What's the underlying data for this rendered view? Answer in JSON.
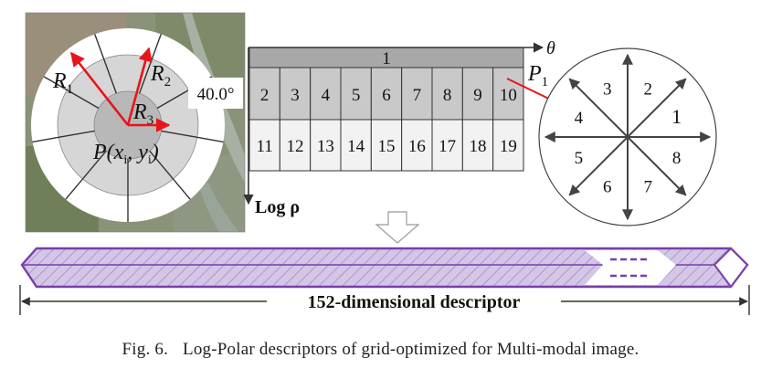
{
  "figure": {
    "caption_number": "Fig. 6.",
    "caption_text": "Log-Polar descriptors of grid-optimized for Multi-modal image."
  },
  "circle_panel": {
    "radius_labels": [
      "R",
      "1",
      "R",
      "2",
      "R",
      "3"
    ],
    "angle_label": "40.0°",
    "point_label": {
      "p": "P(",
      "x": "x",
      "xi": "i",
      "comma": ", ",
      "y": "y",
      "yi": "i",
      "close": ")"
    },
    "colors": {
      "red_arrow": "#e8141a",
      "outer_ring": "#ffffff",
      "middle_ring": "#d6d6d6",
      "inner_disc": "#b8b8b8"
    }
  },
  "grid_panel": {
    "top_cell": "1",
    "middle_row": [
      "2",
      "3",
      "4",
      "5",
      "6",
      "7",
      "8",
      "9",
      "10"
    ],
    "bottom_row": [
      "11",
      "12",
      "13",
      "14",
      "15",
      "16",
      "17",
      "18",
      "19"
    ],
    "x_axis_label": "θ",
    "y_axis_label": "Log ρ",
    "point_label": {
      "p": "P",
      "sub": "1"
    }
  },
  "orientation_panel": {
    "bin_labels": [
      "1",
      "2",
      "3",
      "4",
      "5",
      "6",
      "7",
      "8"
    ]
  },
  "descriptor_bar": {
    "label": "152-dimensional descriptor",
    "colors": {
      "fill": "#d4c6e6",
      "border": "#7a3fa8",
      "hatch": "#9a86c0"
    }
  }
}
